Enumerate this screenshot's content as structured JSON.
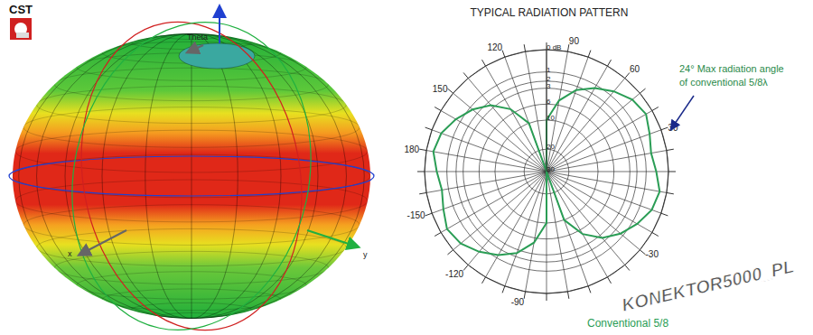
{
  "chart_data": {
    "type": "radar",
    "title": "TYPICAL RADIATION PATTERN",
    "categories": [
      "90",
      null,
      null,
      "120",
      null,
      null,
      "150",
      null,
      null,
      "180",
      null,
      null,
      "-150",
      null,
      null,
      "-120",
      null,
      null,
      "-90",
      null,
      null,
      null,
      null,
      null,
      "-30",
      null,
      null,
      null,
      null,
      null,
      "30",
      null,
      null,
      "60",
      null,
      null
    ],
    "series": [
      {
        "name": "Conventional 5/8",
        "color": "#2a9d55",
        "values": [
          30,
          10,
          5,
          2.5,
          1.3,
          0.6,
          0.2,
          0.1,
          0.3,
          0.5,
          0.3,
          0.1,
          0.2,
          0.6,
          1.3,
          2.5,
          5,
          10,
          30,
          10,
          5,
          2.5,
          1.3,
          0.6,
          0.2,
          0.1,
          0.3,
          0.5,
          0.3,
          0.1,
          0.2,
          0.6,
          1.3,
          2.5,
          5,
          10
        ]
      }
    ],
    "ylim": [
      0,
      30
    ],
    "yticks": [
      {
        "value": 0,
        "label": "0 dB"
      },
      1,
      2,
      3,
      6,
      10,
      20,
      30
    ],
    "grid": true,
    "annotations": [
      "24° Max radiation angle",
      "of conventional 5/8λ"
    ]
  },
  "render_3d": {
    "logo": "CST",
    "axis_labels": {
      "theta": "Theta",
      "x": "x",
      "y": "y"
    }
  },
  "watermark": "KONEKTOR5000_PL"
}
